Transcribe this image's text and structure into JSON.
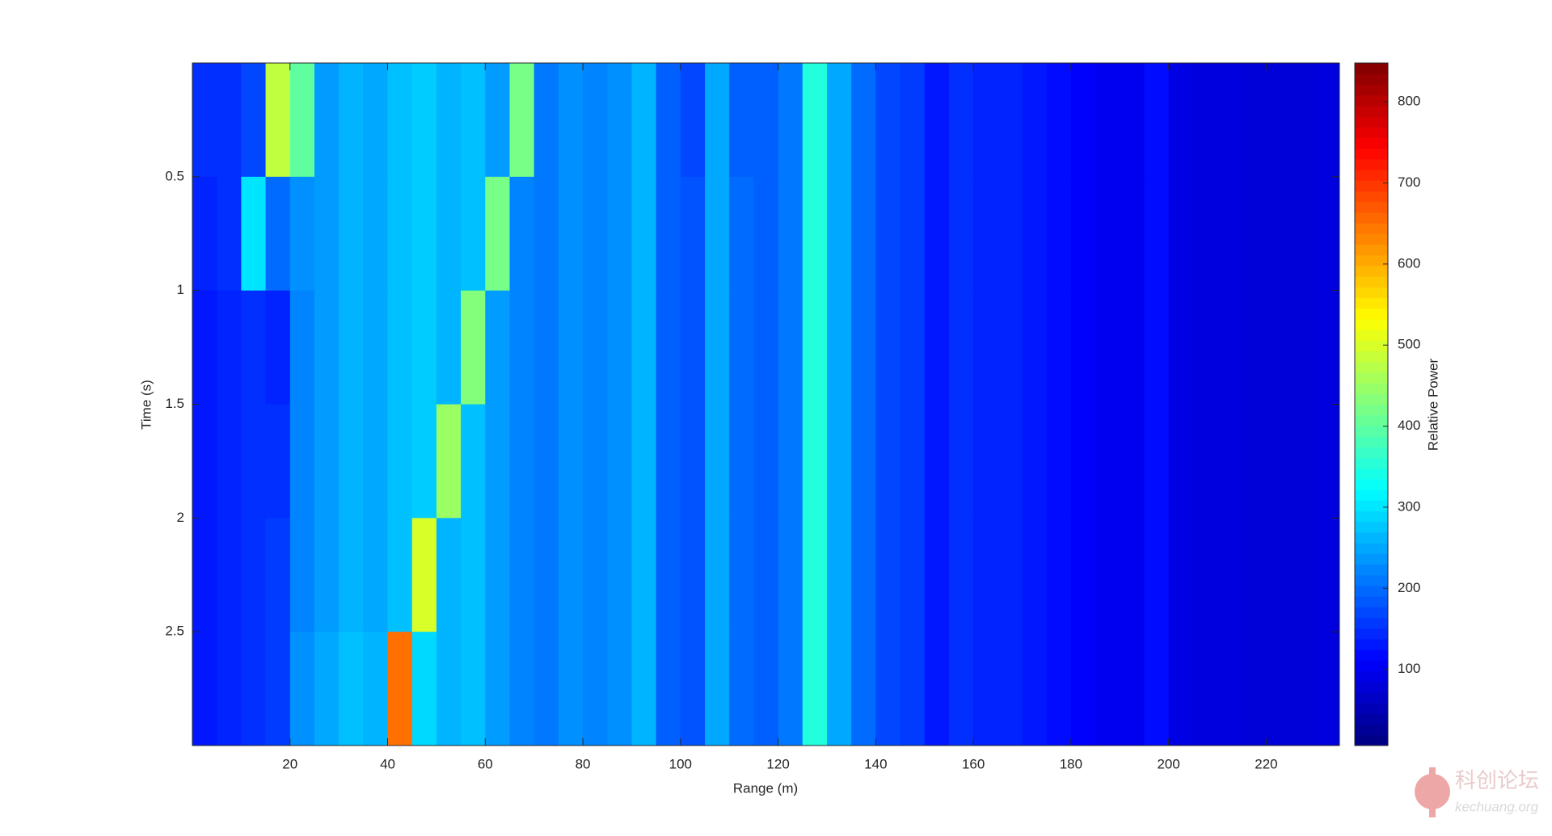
{
  "chart_data": {
    "type": "heatmap",
    "xlabel": "Range (m)",
    "ylabel": "Time (s)",
    "colorbar_label": "Relative Power",
    "colormap": "jet",
    "xlim": [
      0,
      235
    ],
    "ylim": [
      0,
      3
    ],
    "y_reversed": true,
    "clim": [
      6,
      848
    ],
    "xticks": [
      20,
      40,
      60,
      80,
      100,
      120,
      140,
      160,
      180,
      200,
      220
    ],
    "yticks": [
      0.5,
      1,
      1.5,
      2,
      2.5
    ],
    "cticks": [
      100,
      200,
      300,
      400,
      500,
      600,
      700,
      800
    ],
    "x_edges": [
      0,
      5,
      10,
      15,
      20,
      25,
      30,
      35,
      40,
      45,
      50,
      55,
      60,
      65,
      70,
      75,
      80,
      85,
      90,
      95,
      100,
      105,
      110,
      115,
      120,
      125,
      130,
      135,
      140,
      145,
      150,
      155,
      160,
      165,
      170,
      175,
      180,
      185,
      190,
      195,
      200,
      205,
      210,
      215,
      220,
      225,
      230,
      235
    ],
    "y_edges": [
      0,
      0.5,
      1,
      1.5,
      2,
      2.5,
      3
    ],
    "z": [
      [
        150,
        150,
        170,
        480,
        400,
        240,
        260,
        250,
        270,
        280,
        260,
        270,
        240,
        420,
        210,
        230,
        220,
        230,
        260,
        190,
        170,
        250,
        190,
        190,
        210,
        350,
        250,
        200,
        170,
        160,
        130,
        150,
        140,
        140,
        130,
        120,
        110,
        100,
        100,
        120,
        90,
        85,
        85,
        80,
        80,
        80,
        85
      ],
      [
        140,
        150,
        300,
        200,
        230,
        240,
        260,
        250,
        270,
        280,
        260,
        270,
        420,
        220,
        210,
        230,
        220,
        230,
        260,
        190,
        180,
        250,
        200,
        190,
        210,
        350,
        250,
        200,
        170,
        160,
        130,
        150,
        140,
        140,
        130,
        120,
        110,
        100,
        100,
        120,
        90,
        85,
        85,
        80,
        80,
        80,
        85
      ],
      [
        130,
        140,
        150,
        140,
        220,
        240,
        260,
        250,
        270,
        280,
        260,
        430,
        240,
        220,
        210,
        230,
        220,
        230,
        260,
        190,
        180,
        250,
        200,
        190,
        210,
        350,
        250,
        200,
        170,
        160,
        130,
        150,
        140,
        140,
        130,
        120,
        110,
        100,
        100,
        120,
        90,
        85,
        85,
        80,
        80,
        80,
        85
      ],
      [
        130,
        140,
        150,
        150,
        220,
        240,
        260,
        250,
        270,
        280,
        450,
        270,
        240,
        220,
        210,
        230,
        220,
        230,
        260,
        190,
        180,
        250,
        200,
        190,
        210,
        350,
        250,
        200,
        170,
        160,
        130,
        150,
        140,
        140,
        130,
        120,
        110,
        100,
        100,
        120,
        90,
        85,
        85,
        80,
        80,
        80,
        85
      ],
      [
        130,
        140,
        150,
        160,
        220,
        240,
        260,
        250,
        270,
        500,
        260,
        270,
        240,
        220,
        210,
        230,
        220,
        230,
        260,
        190,
        180,
        250,
        200,
        190,
        210,
        350,
        250,
        200,
        170,
        160,
        130,
        150,
        140,
        140,
        130,
        120,
        110,
        100,
        100,
        120,
        90,
        85,
        85,
        80,
        80,
        80,
        85
      ],
      [
        130,
        140,
        150,
        160,
        230,
        250,
        270,
        260,
        650,
        290,
        260,
        270,
        240,
        220,
        210,
        230,
        220,
        230,
        260,
        190,
        180,
        250,
        200,
        190,
        210,
        350,
        250,
        200,
        170,
        160,
        130,
        150,
        140,
        140,
        130,
        120,
        110,
        100,
        100,
        120,
        90,
        85,
        85,
        80,
        80,
        80,
        85
      ]
    ]
  },
  "watermark": {
    "text": "科创论坛",
    "url": "kechuang.org"
  }
}
